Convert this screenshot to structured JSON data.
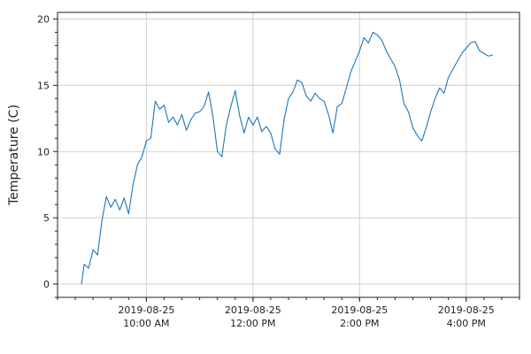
{
  "chart_data": {
    "type": "line",
    "ylabel": "Temperature (C)",
    "xlabel": "",
    "title": "",
    "grid": true,
    "legend": "none",
    "ylim": [
      -1,
      20.5
    ],
    "xlim": [
      "2019-08-25T08:20",
      "2019-08-25T17:00"
    ],
    "y_ticks": [
      0,
      5,
      10,
      15,
      20
    ],
    "x_ticks": [
      {
        "value": "2019-08-25T10:00",
        "date": "2019-08-25",
        "time": "10:00 AM"
      },
      {
        "value": "2019-08-25T12:00",
        "date": "2019-08-25",
        "time": "12:00 PM"
      },
      {
        "value": "2019-08-25T14:00",
        "date": "2019-08-25",
        "time": "2:00 PM"
      },
      {
        "value": "2019-08-25T16:00",
        "date": "2019-08-25",
        "time": "4:00 PM"
      }
    ],
    "series": [
      {
        "color": "#1f77b4",
        "x": [
          "2019-08-25T08:47",
          "2019-08-25T08:50",
          "2019-08-25T08:55",
          "2019-08-25T09:00",
          "2019-08-25T09:05",
          "2019-08-25T09:10",
          "2019-08-25T09:15",
          "2019-08-25T09:20",
          "2019-08-25T09:25",
          "2019-08-25T09:30",
          "2019-08-25T09:35",
          "2019-08-25T09:40",
          "2019-08-25T09:45",
          "2019-08-25T09:50",
          "2019-08-25T09:55",
          "2019-08-25T10:00",
          "2019-08-25T10:05",
          "2019-08-25T10:10",
          "2019-08-25T10:15",
          "2019-08-25T10:20",
          "2019-08-25T10:25",
          "2019-08-25T10:30",
          "2019-08-25T10:35",
          "2019-08-25T10:40",
          "2019-08-25T10:45",
          "2019-08-25T10:50",
          "2019-08-25T10:55",
          "2019-08-25T11:00",
          "2019-08-25T11:05",
          "2019-08-25T11:10",
          "2019-08-25T11:15",
          "2019-08-25T11:20",
          "2019-08-25T11:25",
          "2019-08-25T11:30",
          "2019-08-25T11:35",
          "2019-08-25T11:40",
          "2019-08-25T11:45",
          "2019-08-25T11:50",
          "2019-08-25T11:55",
          "2019-08-25T12:00",
          "2019-08-25T12:05",
          "2019-08-25T12:10",
          "2019-08-25T12:15",
          "2019-08-25T12:20",
          "2019-08-25T12:25",
          "2019-08-25T12:30",
          "2019-08-25T12:35",
          "2019-08-25T12:40",
          "2019-08-25T12:45",
          "2019-08-25T12:50",
          "2019-08-25T12:55",
          "2019-08-25T13:00",
          "2019-08-25T13:05",
          "2019-08-25T13:10",
          "2019-08-25T13:15",
          "2019-08-25T13:20",
          "2019-08-25T13:25",
          "2019-08-25T13:30",
          "2019-08-25T13:35",
          "2019-08-25T13:40",
          "2019-08-25T13:45",
          "2019-08-25T13:50",
          "2019-08-25T13:55",
          "2019-08-25T14:00",
          "2019-08-25T14:05",
          "2019-08-25T14:10",
          "2019-08-25T14:15",
          "2019-08-25T14:20",
          "2019-08-25T14:25",
          "2019-08-25T14:30",
          "2019-08-25T14:35",
          "2019-08-25T14:40",
          "2019-08-25T14:45",
          "2019-08-25T14:50",
          "2019-08-25T14:55",
          "2019-08-25T15:00",
          "2019-08-25T15:05",
          "2019-08-25T15:10",
          "2019-08-25T15:15",
          "2019-08-25T15:20",
          "2019-08-25T15:25",
          "2019-08-25T15:30",
          "2019-08-25T15:35",
          "2019-08-25T15:40",
          "2019-08-25T15:45",
          "2019-08-25T15:50",
          "2019-08-25T15:55",
          "2019-08-25T16:00",
          "2019-08-25T16:05",
          "2019-08-25T16:10",
          "2019-08-25T16:15",
          "2019-08-25T16:20",
          "2019-08-25T16:25",
          "2019-08-25T16:30"
        ],
        "y": [
          0.0,
          1.5,
          1.2,
          2.6,
          2.2,
          4.8,
          6.6,
          5.8,
          6.4,
          5.6,
          6.5,
          5.3,
          7.5,
          9.0,
          9.6,
          10.8,
          11.0,
          13.8,
          13.2,
          13.5,
          12.2,
          12.6,
          12.0,
          12.8,
          11.6,
          12.4,
          12.9,
          13.0,
          13.4,
          14.5,
          12.6,
          10.0,
          9.6,
          12.0,
          13.4,
          14.6,
          12.7,
          11.4,
          12.6,
          12.0,
          12.6,
          11.5,
          11.9,
          11.4,
          10.2,
          9.8,
          12.4,
          14.0,
          14.5,
          15.4,
          15.2,
          14.2,
          13.8,
          14.4,
          14.0,
          13.8,
          12.8,
          11.4,
          13.4,
          13.6,
          14.8,
          16.0,
          16.8,
          17.6,
          18.6,
          18.2,
          19.0,
          18.8,
          18.4,
          17.6,
          17.0,
          16.4,
          15.4,
          13.6,
          13.0,
          11.8,
          11.2,
          10.8,
          11.8,
          13.0,
          14.0,
          14.8,
          14.4,
          15.6,
          16.2,
          16.8,
          17.4,
          17.8,
          18.2,
          18.3,
          17.6,
          17.4,
          17.2,
          17.3
        ]
      }
    ]
  }
}
